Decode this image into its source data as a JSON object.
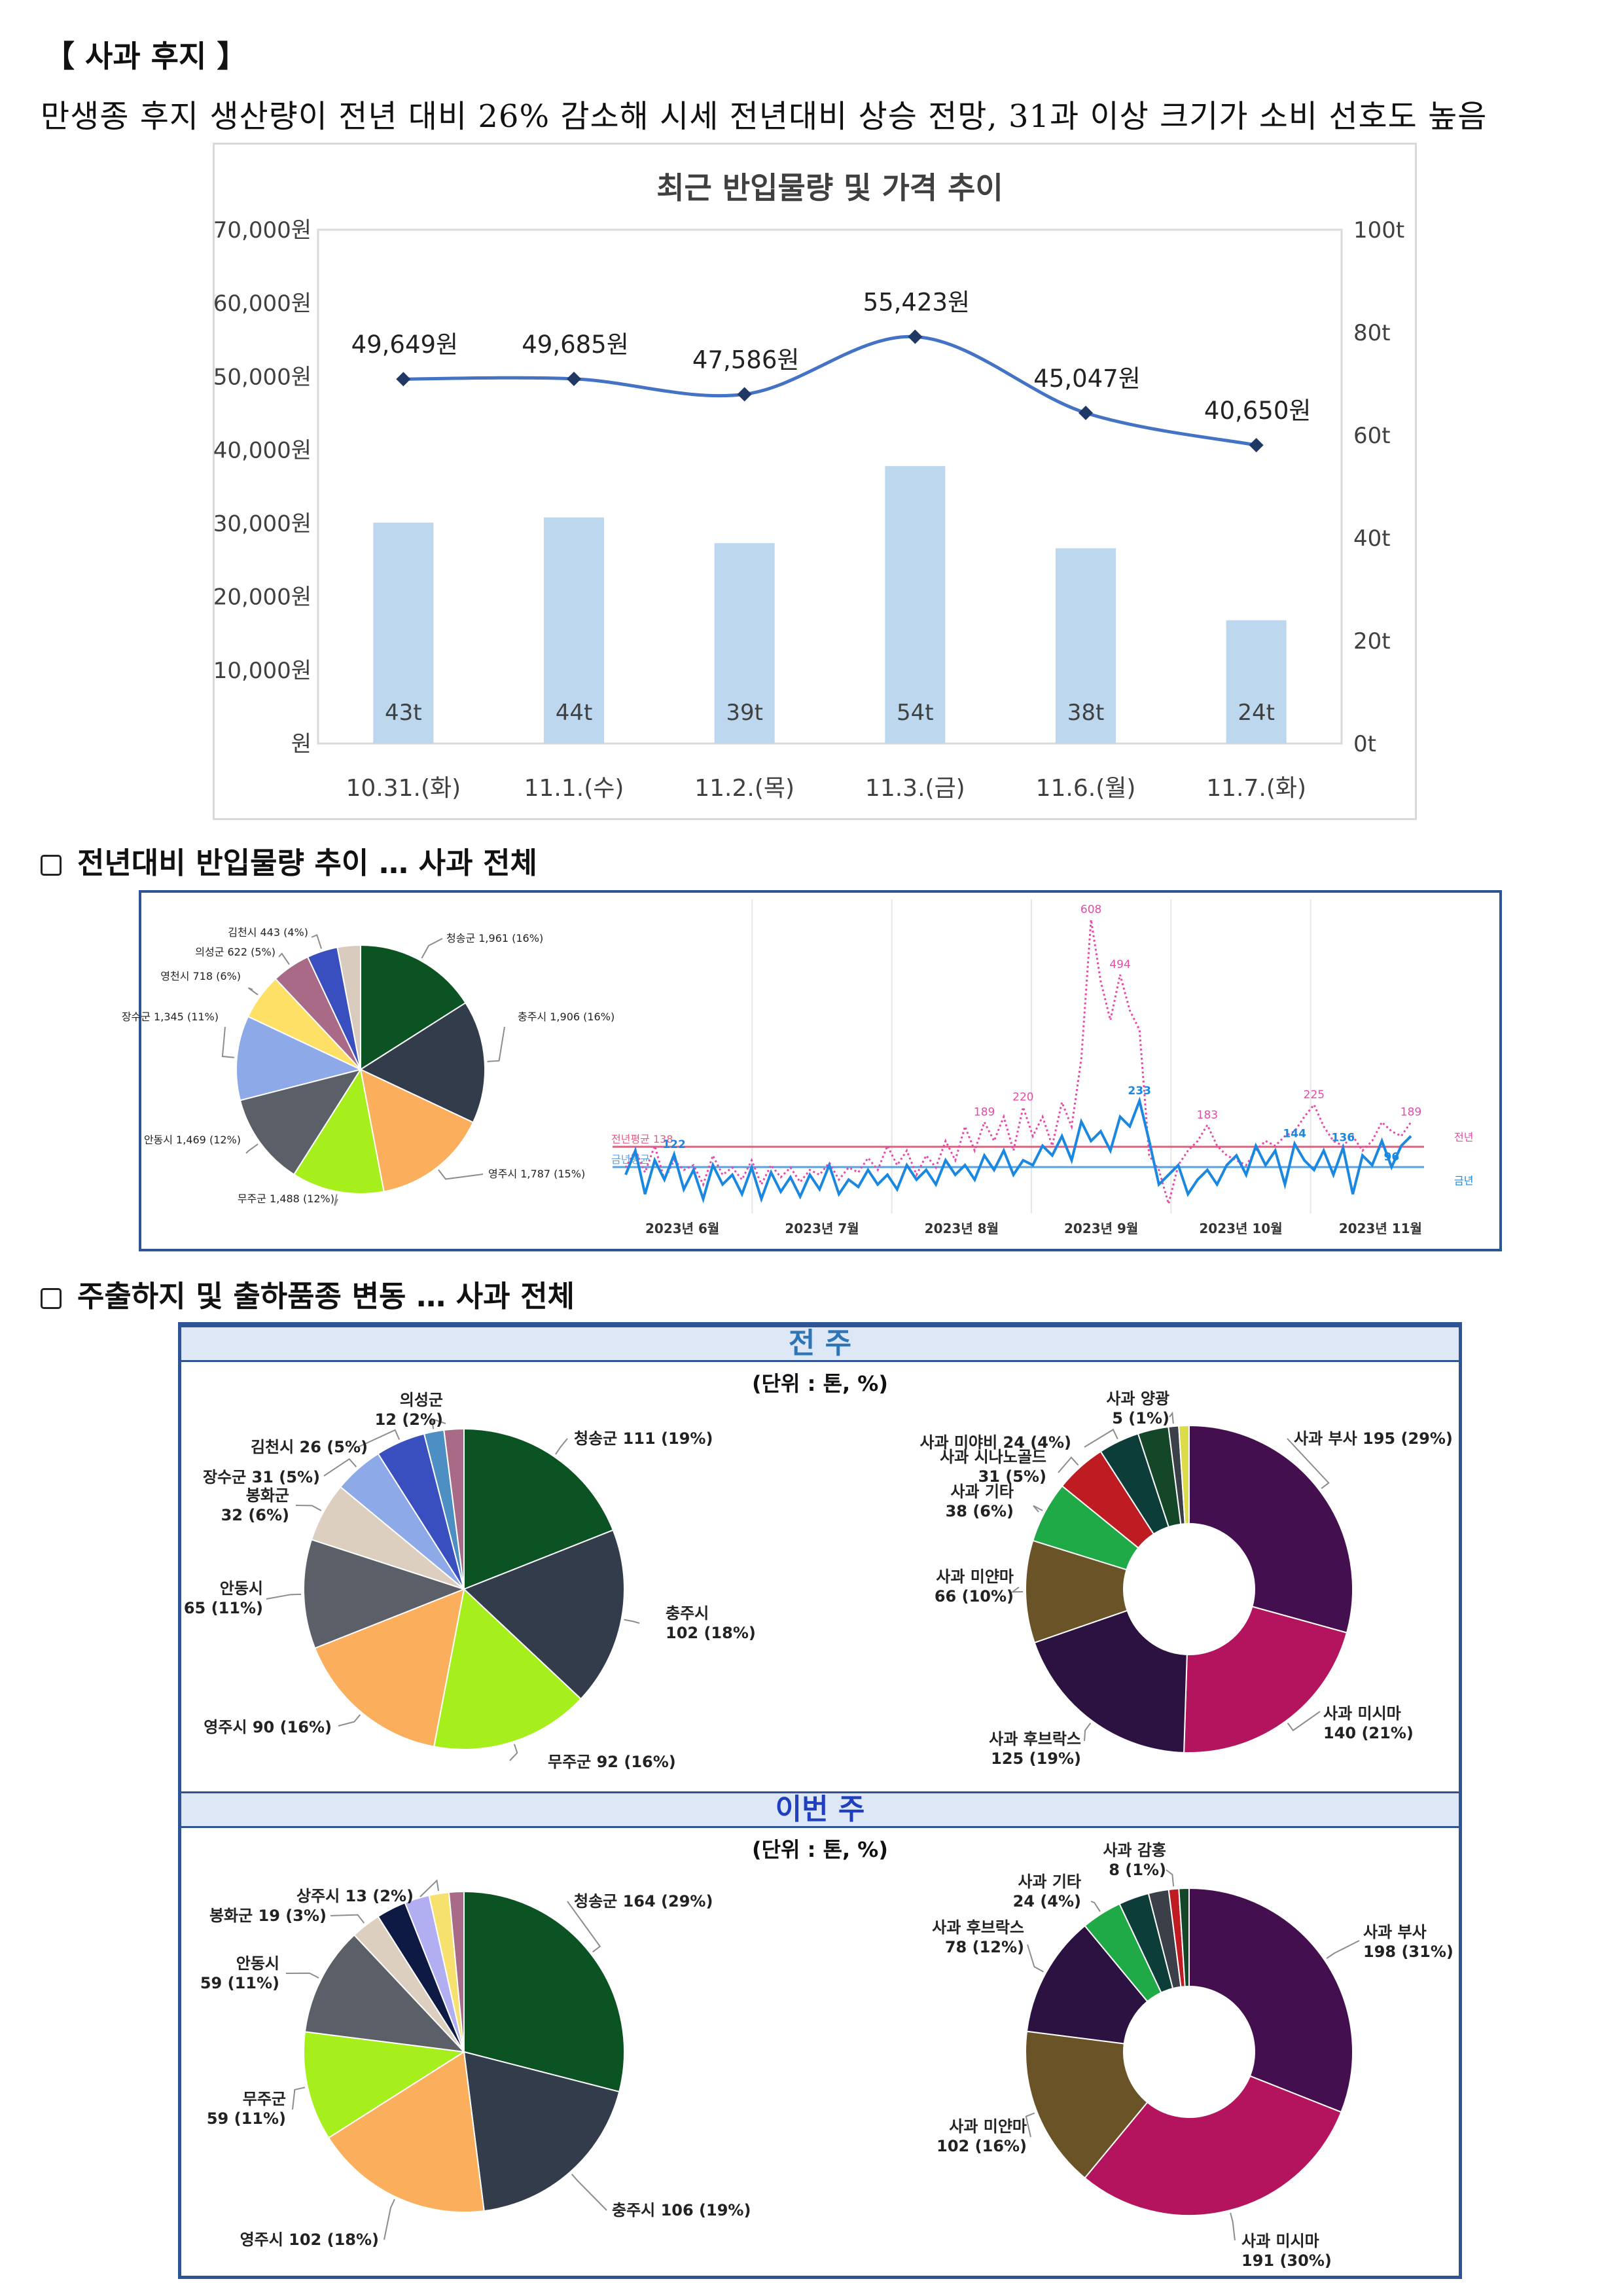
{
  "header": {
    "section_title": "【 사과 후지 】",
    "summary": "만생종 후지 생산량이 전년 대비 26% 감소해 시세 전년대비 상승 전망, 31과 이상 크기가 소비 선호도 높음"
  },
  "chart_data": [
    {
      "type": "bar",
      "title": "최근 반입물량 및 가격 추이",
      "categories": [
        "10.31.(화)",
        "11.1.(수)",
        "11.2.(목)",
        "11.3.(금)",
        "11.6.(월)",
        "11.7.(화)"
      ],
      "series": [
        {
          "type": "bar",
          "axis": "right",
          "values": [
            43,
            44,
            39,
            54,
            38,
            24
          ],
          "labels": [
            "43t",
            "44t",
            "39t",
            "54t",
            "38t",
            "24t"
          ],
          "color": "#bdd7ee"
        },
        {
          "type": "line",
          "axis": "left",
          "values": [
            49649,
            49685,
            47586,
            55423,
            45047,
            40650
          ],
          "labels": [
            "49,649원",
            "49,685원",
            "47,586원",
            "55,423원",
            "45,047원",
            "40,650원"
          ],
          "color": "#4472c4"
        }
      ],
      "left_axis": {
        "ylim": [
          0,
          70000
        ],
        "ticks": [
          "원",
          "10,000원",
          "20,000원",
          "30,000원",
          "40,000원",
          "50,000원",
          "60,000원",
          "70,000원"
        ]
      },
      "right_axis": {
        "ylim": [
          0,
          100
        ],
        "ticks": [
          "0t",
          "20t",
          "40t",
          "60t",
          "80t",
          "100t"
        ]
      },
      "grid": false
    },
    {
      "type": "pie",
      "slices": [
        {
          "label": "청송군 1,961 (16%)",
          "value": 16,
          "color": "#0b5323"
        },
        {
          "label": "충주시 1,906 (16%)",
          "value": 16,
          "color": "#333c4a"
        },
        {
          "label": "영주시 1,787 (15%)",
          "value": 15,
          "color": "#fbae5c"
        },
        {
          "label": "무주군 1,488 (12%)",
          "value": 12,
          "color": "#a6ef1c"
        },
        {
          "label": "안동시 1,469 (12%)",
          "value": 12,
          "color": "#5b5f68"
        },
        {
          "label": "장수군 1,345 (11%)",
          "value": 11,
          "color": "#8ea9e8"
        },
        {
          "label": "영천시 718 (6%)",
          "value": 6,
          "color": "#ffe066"
        },
        {
          "label": "의성군 622 (5%)",
          "value": 5,
          "color": "#a86a86"
        },
        {
          "label": "김천시 443 (4%)",
          "value": 4,
          "color": "#3a4fbf"
        },
        {
          "label": "",
          "value": 3,
          "color": "#d8cbbd"
        }
      ]
    },
    {
      "type": "line",
      "x_ticks": [
        "2023년 6월",
        "2023년 7월",
        "2023년 8월",
        "2023년 9월",
        "2023년 10월",
        "2023년 11월"
      ],
      "ylim": [
        0,
        650
      ],
      "series": [
        {
          "name": "전년",
          "style": "dotted",
          "color": "#e84aa8",
          "values": [
            95,
            130,
            85,
            140,
            70,
            110,
            90,
            100,
            60,
            120,
            80,
            95,
            70,
            110,
            60,
            100,
            75,
            95,
            65,
            90,
            80,
            105,
            70,
            95,
            85,
            115,
            90,
            140,
            100,
            130,
            80,
            120,
            95,
            150,
            110,
            180,
            130,
            189,
            150,
            200,
            130,
            220,
            160,
            200,
            140,
            230,
            180,
            320,
            608,
            480,
            400,
            494,
            420,
            380,
            120,
            90,
            20,
            100,
            130,
            150,
            183,
            140,
            120,
            110,
            100,
            130,
            150,
            140,
            160,
            170,
            200,
            225,
            180,
            150,
            140,
            160,
            130,
            150,
            189,
            170,
            160,
            189
          ],
          "point_labels": [
            {
              "i": 37,
              "text": "189"
            },
            {
              "i": 41,
              "text": "220"
            },
            {
              "i": 48,
              "text": "608"
            },
            {
              "i": 51,
              "text": "494"
            },
            {
              "i": 60,
              "text": "183"
            },
            {
              "i": 71,
              "text": "225"
            },
            {
              "i": 81,
              "text": "189"
            }
          ]
        },
        {
          "name": "금년",
          "style": "solid",
          "color": "#1a88e0",
          "values": [
            80,
            130,
            40,
            110,
            70,
            122,
            50,
            90,
            30,
            100,
            60,
            80,
            40,
            95,
            30,
            85,
            45,
            75,
            35,
            80,
            50,
            100,
            40,
            70,
            55,
            90,
            60,
            80,
            50,
            100,
            70,
            90,
            60,
            110,
            80,
            100,
            70,
            120,
            90,
            130,
            80,
            110,
            100,
            140,
            120,
            160,
            110,
            190,
            150,
            170,
            130,
            200,
            180,
            233,
            150,
            60,
            80,
            100,
            40,
            70,
            90,
            60,
            100,
            120,
            80,
            140,
            100,
            130,
            60,
            144,
            110,
            90,
            130,
            80,
            136,
            40,
            120,
            100,
            150,
            96,
            140,
            160
          ],
          "point_labels": [
            {
              "i": 5,
              "text": "122"
            },
            {
              "i": 53,
              "text": "233"
            },
            {
              "i": 69,
              "text": "144"
            },
            {
              "i": 74,
              "text": "136"
            },
            {
              "i": 79,
              "text": "96"
            }
          ]
        }
      ],
      "reference_lines": [
        {
          "text": "전년평균 138",
          "value": 138,
          "color": "#e06080"
        },
        {
          "text": "금년평균",
          "value": 96,
          "color": "#5aa0e0"
        }
      ],
      "right_labels": [
        "전년",
        "금년"
      ]
    },
    {
      "type": "pie",
      "group": "전 주",
      "unit_label": "(단위 : 톤, %)",
      "slices": [
        {
          "label": "청송군 111 (19%)",
          "value": 19,
          "color": "#0b5323"
        },
        {
          "label": "충주시\n102 (18%)",
          "value": 18,
          "color": "#333c4a"
        },
        {
          "label": "무주군 92 (16%)",
          "value": 16,
          "color": "#a6ef1c"
        },
        {
          "label": "영주시 90 (16%)",
          "value": 16,
          "color": "#fbae5c"
        },
        {
          "label": "안동시\n65 (11%)",
          "value": 11,
          "color": "#5b5f68"
        },
        {
          "label": "봉화군\n32 (6%)",
          "value": 6,
          "color": "#dccfbf"
        },
        {
          "label": "장수군 31 (5%)",
          "value": 5,
          "color": "#8ea9e8"
        },
        {
          "label": "김천시 26 (5%)",
          "value": 5,
          "color": "#3a4fbf"
        },
        {
          "label": "의성군\n12 (2%)",
          "value": 2,
          "color": "#4d8fc2"
        },
        {
          "label": "",
          "value": 2,
          "color": "#a86a86"
        }
      ]
    },
    {
      "type": "pie",
      "group": "전 주",
      "donut": true,
      "slices": [
        {
          "label": "사과 부사 195 (29%)",
          "value": 29,
          "color": "#440f4e"
        },
        {
          "label": "사과 미시마\n140 (21%)",
          "value": 21,
          "color": "#b4135e"
        },
        {
          "label": "사과 후브락스\n125 (19%)",
          "value": 19,
          "color": "#2c1240"
        },
        {
          "label": "사과 미얀마\n66 (10%)",
          "value": 10,
          "color": "#6a5427"
        },
        {
          "label": "사과 기타\n38 (6%)",
          "value": 6,
          "color": "#1faa47"
        },
        {
          "label": "사과 시나노골드\n31 (5%)",
          "value": 5,
          "color": "#bf1b22"
        },
        {
          "label": "사과 미야비 24 (4%)",
          "value": 4,
          "color": "#0d3d38"
        },
        {
          "label": "",
          "value": 3,
          "color": "#134728"
        },
        {
          "label": "사과 양광\n5 (1%)",
          "value": 1,
          "color": "#3a3f48"
        },
        {
          "label": "",
          "value": 1,
          "color": "#dcdc4a"
        }
      ]
    },
    {
      "type": "pie",
      "group": "이번 주",
      "unit_label": "(단위 : 톤, %)",
      "slices": [
        {
          "label": "청송군 164 (29%)",
          "value": 29,
          "color": "#0b5323"
        },
        {
          "label": "충주시 106 (19%)",
          "value": 19,
          "color": "#333c4a"
        },
        {
          "label": "영주시 102 (18%)",
          "value": 18,
          "color": "#fbae5c"
        },
        {
          "label": "무주군\n59 (11%)",
          "value": 11,
          "color": "#a6ef1c"
        },
        {
          "label": "안동시\n59 (11%)",
          "value": 11,
          "color": "#5b5f68"
        },
        {
          "label": "봉화군 19 (3%)",
          "value": 3,
          "color": "#dccfbf"
        },
        {
          "label": "",
          "value": 3,
          "color": "#0e1a44"
        },
        {
          "label": "",
          "value": 2.5,
          "color": "#b2aef2"
        },
        {
          "label": "상주시 13 (2%)",
          "value": 2,
          "color": "#f6e06e"
        },
        {
          "label": "",
          "value": 1.5,
          "color": "#a86a86"
        }
      ]
    },
    {
      "type": "pie",
      "group": "이번 주",
      "donut": true,
      "slices": [
        {
          "label": "사과 부사\n198 (31%)",
          "value": 31,
          "color": "#440f4e"
        },
        {
          "label": "사과 미시마\n191 (30%)",
          "value": 30,
          "color": "#b4135e"
        },
        {
          "label": "사과 미얀마\n102 (16%)",
          "value": 16,
          "color": "#6a5427"
        },
        {
          "label": "사과 후브락스\n78 (12%)",
          "value": 12,
          "color": "#2c1240"
        },
        {
          "label": "사과 기타\n24 (4%)",
          "value": 4,
          "color": "#1faa47"
        },
        {
          "label": "",
          "value": 3,
          "color": "#0d3d38"
        },
        {
          "label": "",
          "value": 2,
          "color": "#3a3f48"
        },
        {
          "label": "사과 감홍\n8 (1%)",
          "value": 1,
          "color": "#bf1b22"
        },
        {
          "label": "",
          "value": 1,
          "color": "#134728"
        }
      ]
    }
  ],
  "sections": {
    "incoming": "전년대비 반입물량 추이 … 사과 전체",
    "shipping": "주출하지 및 출하품종 변동 … 사과 전체"
  },
  "bands": {
    "prev": "전 주",
    "curr": "이번 주"
  }
}
